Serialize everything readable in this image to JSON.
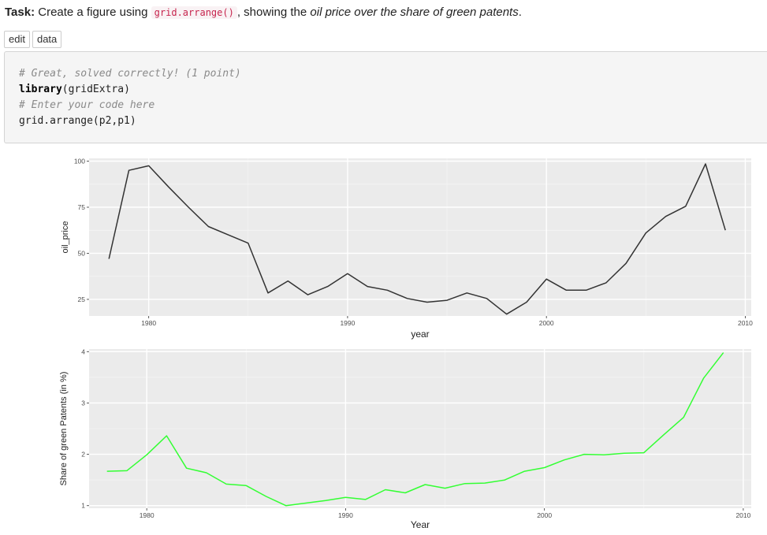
{
  "task": {
    "label": "Task:",
    "text_before": " Create a figure using ",
    "code": "grid.arrange()",
    "text_middle": ", showing the ",
    "italic": "oil price over the share of green patents",
    "text_after": "."
  },
  "buttons": {
    "edit": "edit",
    "data": "data"
  },
  "code_block": {
    "lines": [
      {
        "kind": "comment",
        "text": "# Great, solved correctly! (1 point)"
      },
      {
        "kind": "call",
        "kw": "library",
        "rest": "(gridExtra)"
      },
      {
        "kind": "comment",
        "text": "# Enter your code here"
      },
      {
        "kind": "plain",
        "text": "grid.arrange(p2,p1)"
      }
    ]
  },
  "chart_data": [
    {
      "type": "line",
      "xlabel": "year",
      "ylabel": "oil_price",
      "x_ticks": [
        1980,
        1990,
        2000,
        2010
      ],
      "y_ticks": [
        25,
        50,
        75,
        100
      ],
      "xlim": [
        1977,
        2010.3
      ],
      "ylim": [
        16,
        101.5
      ],
      "line_color": "#333333",
      "x": [
        1978,
        1979,
        1980,
        1981,
        1982,
        1983,
        1984,
        1985,
        1986,
        1987,
        1988,
        1989,
        1990,
        1991,
        1992,
        1993,
        1994,
        1995,
        1996,
        1997,
        1998,
        1999,
        2000,
        2001,
        2002,
        2003,
        2004,
        2005,
        2006,
        2007,
        2008,
        2009
      ],
      "y": [
        47,
        95,
        97.5,
        86,
        75,
        64.5,
        60,
        55.5,
        28.5,
        35,
        27.5,
        32,
        39,
        32,
        30,
        25.5,
        23.5,
        24.5,
        28.5,
        25.5,
        17,
        23.5,
        36,
        30,
        30,
        34,
        44.5,
        61,
        70,
        75.5,
        98.5,
        62.5
      ]
    },
    {
      "type": "line",
      "xlabel": "Year",
      "ylabel": "Share of green Patents (in %)",
      "x_ticks": [
        1980,
        1990,
        2000,
        2010
      ],
      "y_ticks": [
        1,
        2,
        3,
        4
      ],
      "xlim": [
        1977.1,
        2010.4
      ],
      "ylim": [
        0.95,
        4.05
      ],
      "line_color": "#33ff33",
      "x": [
        1978,
        1979,
        1980,
        1981,
        1982,
        1983,
        1984,
        1985,
        1986,
        1987,
        1988,
        1989,
        1990,
        1991,
        1992,
        1993,
        1994,
        1995,
        1996,
        1997,
        1998,
        1999,
        2000,
        2001,
        2002,
        2003,
        2004,
        2005,
        2006,
        2007,
        2008,
        2009
      ],
      "y": [
        1.67,
        1.68,
        1.99,
        2.36,
        1.73,
        1.64,
        1.42,
        1.39,
        1.18,
        1.0,
        1.05,
        1.1,
        1.16,
        1.12,
        1.31,
        1.25,
        1.41,
        1.34,
        1.43,
        1.44,
        1.5,
        1.67,
        1.74,
        1.89,
        2.0,
        1.99,
        2.02,
        2.03,
        2.38,
        2.72,
        3.48,
        3.98
      ]
    }
  ]
}
